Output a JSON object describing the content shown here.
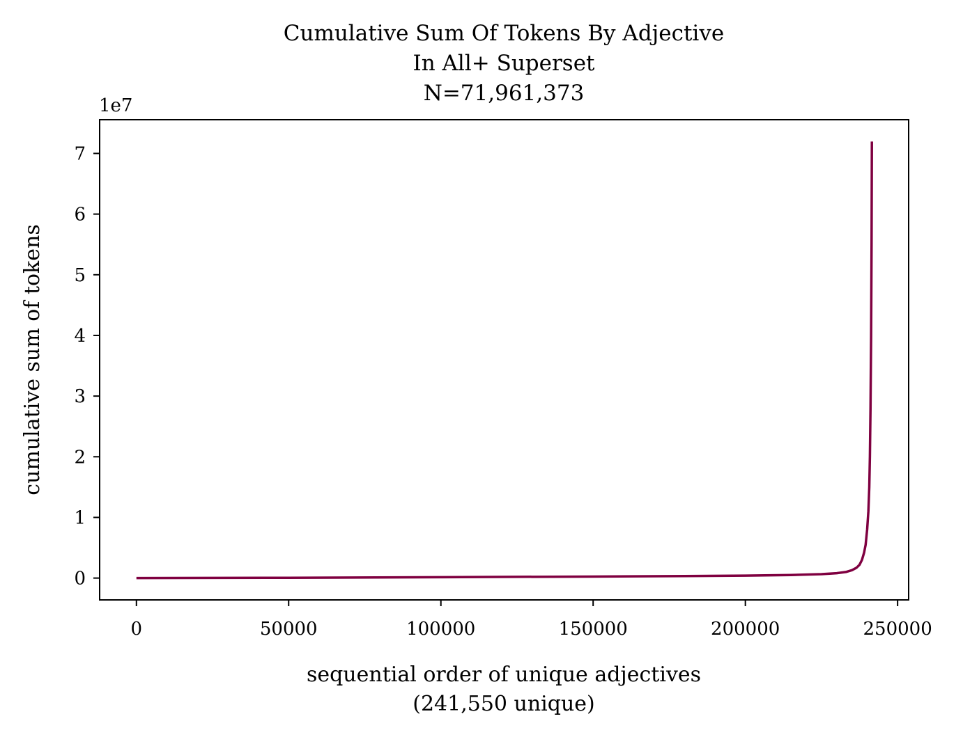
{
  "chart_data": {
    "type": "line",
    "title_lines": [
      "Cumulative Sum Of Tokens By Adjective",
      "In All+ Superset",
      "N=71,961,373"
    ],
    "xlabel_lines": [
      "sequential order of unique adjectives",
      "(241,550 unique)"
    ],
    "ylabel": "cumulative sum of tokens",
    "y_offset_label": "1e7",
    "xlim": [
      -12078,
      253628
    ],
    "ylim": [
      -3598069,
      75559442
    ],
    "x_ticks": [
      0,
      50000,
      100000,
      150000,
      200000,
      250000
    ],
    "x_tick_labels": [
      "0",
      "50000",
      "100000",
      "150000",
      "200000",
      "250000"
    ],
    "y_ticks": [
      0,
      10000000,
      20000000,
      30000000,
      40000000,
      50000000,
      60000000,
      70000000
    ],
    "y_tick_labels": [
      "0",
      "1",
      "2",
      "3",
      "4",
      "5",
      "6",
      "7"
    ],
    "grid": false,
    "series": [
      {
        "color": "#7f0040",
        "x": [
          0,
          50000,
          100000,
          150000,
          180000,
          200000,
          215000,
          225000,
          230000,
          233000,
          235000,
          236500,
          237500,
          238300,
          239000,
          239500,
          240000,
          240400,
          240700,
          240900,
          241100,
          241300,
          241450,
          241550
        ],
        "y": [
          0,
          50000,
          150000,
          250000,
          330000,
          400000,
          500000,
          650000,
          800000,
          1000000,
          1300000,
          1700000,
          2200000,
          3000000,
          4200000,
          5500000,
          8000000,
          11000000,
          15000000,
          20000000,
          28000000,
          40000000,
          55000000,
          71961373
        ]
      }
    ]
  }
}
